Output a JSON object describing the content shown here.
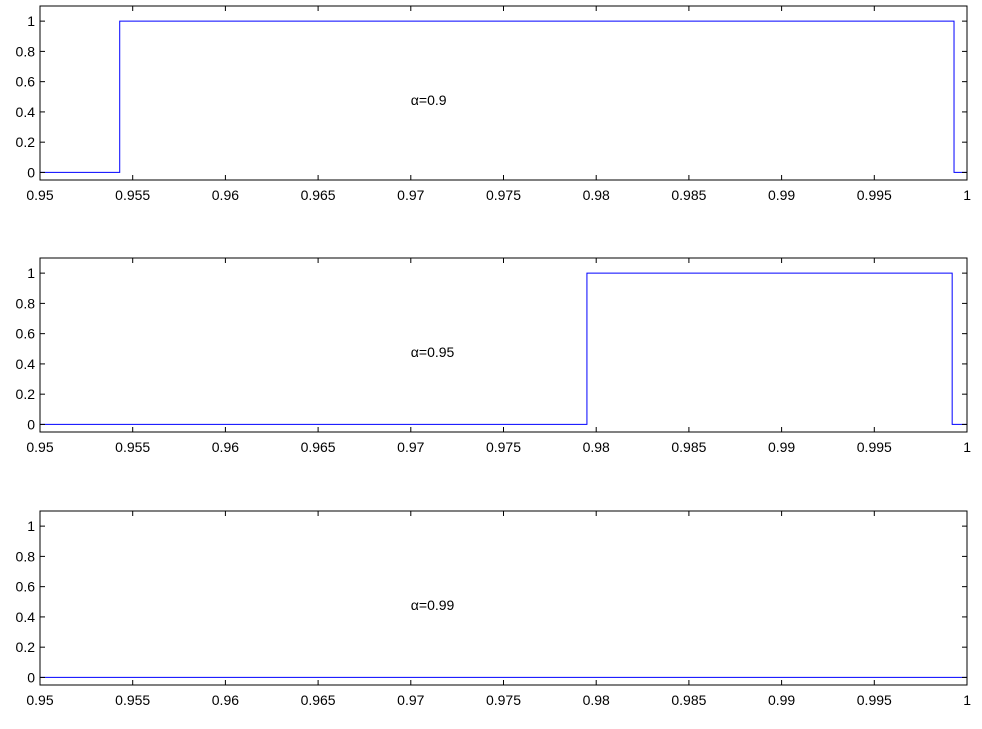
{
  "chart_data": [
    {
      "type": "line",
      "annotation": "α=0.9",
      "xlim": [
        0.95,
        1.0
      ],
      "ylim": [
        -0.05,
        1.1
      ],
      "grid": false,
      "x_ticks": [
        0.95,
        0.955,
        0.96,
        0.965,
        0.97,
        0.975,
        0.98,
        0.985,
        0.99,
        0.995,
        1
      ],
      "x_tick_labels": [
        "0.95",
        "0.955",
        "0.96",
        "0.965",
        "0.97",
        "0.975",
        "0.98",
        "0.985",
        "0.99",
        "0.995",
        "1"
      ],
      "y_ticks": [
        0,
        0.2,
        0.4,
        0.6,
        0.8,
        1
      ],
      "y_tick_labels": [
        "0",
        "0.2",
        "0.4",
        "0.6",
        "0.8",
        "1"
      ],
      "series": [
        {
          "color": "#0000ff",
          "x": [
            0.95,
            0.9543,
            0.9543,
            0.9993,
            0.9993,
            1.0
          ],
          "y": [
            0,
            0,
            1,
            1,
            0,
            0
          ]
        }
      ]
    },
    {
      "type": "line",
      "annotation": "α=0.95",
      "xlim": [
        0.95,
        1.0
      ],
      "ylim": [
        -0.05,
        1.1
      ],
      "grid": false,
      "x_ticks": [
        0.95,
        0.955,
        0.96,
        0.965,
        0.97,
        0.975,
        0.98,
        0.985,
        0.99,
        0.995,
        1
      ],
      "x_tick_labels": [
        "0.95",
        "0.955",
        "0.96",
        "0.965",
        "0.97",
        "0.975",
        "0.98",
        "0.985",
        "0.99",
        "0.995",
        "1"
      ],
      "y_ticks": [
        0,
        0.2,
        0.4,
        0.6,
        0.8,
        1
      ],
      "y_tick_labels": [
        "0",
        "0.2",
        "0.4",
        "0.6",
        "0.8",
        "1"
      ],
      "series": [
        {
          "color": "#0000ff",
          "x": [
            0.95,
            0.9795,
            0.9795,
            0.9992,
            0.9992,
            1.0
          ],
          "y": [
            0,
            0,
            1,
            1,
            0,
            0
          ]
        }
      ]
    },
    {
      "type": "line",
      "annotation": "α=0.99",
      "xlim": [
        0.95,
        1.0
      ],
      "ylim": [
        -0.05,
        1.1
      ],
      "grid": false,
      "x_ticks": [
        0.95,
        0.955,
        0.96,
        0.965,
        0.97,
        0.975,
        0.98,
        0.985,
        0.99,
        0.995,
        1
      ],
      "x_tick_labels": [
        "0.95",
        "0.955",
        "0.96",
        "0.965",
        "0.97",
        "0.975",
        "0.98",
        "0.985",
        "0.99",
        "0.995",
        "1"
      ],
      "y_ticks": [
        0,
        0.2,
        0.4,
        0.6,
        0.8,
        1
      ],
      "y_tick_labels": [
        "0",
        "0.2",
        "0.4",
        "0.6",
        "0.8",
        "1"
      ],
      "series": [
        {
          "color": "#0000ff",
          "x": [
            0.95,
            1.0
          ],
          "y": [
            0,
            0
          ]
        }
      ]
    }
  ]
}
